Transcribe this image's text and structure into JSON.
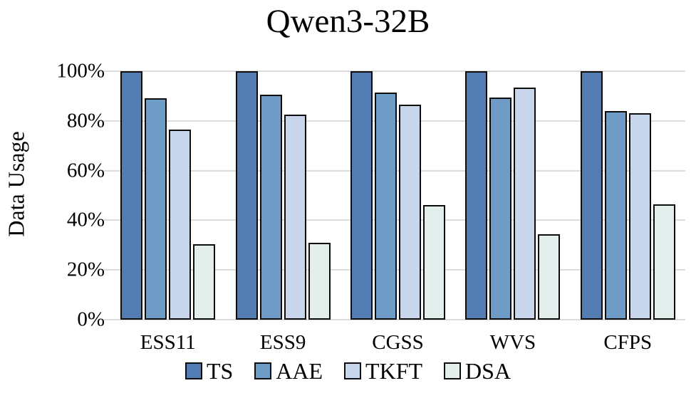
{
  "chart": {
    "title": "Qwen3-32B",
    "y_axis_title": "Data Usage"
  },
  "chart_data": {
    "type": "bar",
    "title": "Qwen3-32B",
    "xlabel": "",
    "ylabel": "Data Usage",
    "categories": [
      "ESS11",
      "ESS9",
      "CGSS",
      "WVS",
      "CFPS"
    ],
    "series": [
      {
        "name": "TS",
        "color": "#527cb2",
        "values": [
          100,
          100,
          100,
          100,
          100
        ]
      },
      {
        "name": "AAE",
        "color": "#6f9cc7",
        "values": [
          89,
          90.5,
          91.5,
          89.5,
          84
        ]
      },
      {
        "name": "TKFT",
        "color": "#c7d6eb",
        "values": [
          76.5,
          82.5,
          86.5,
          93.5,
          83
        ]
      },
      {
        "name": "DSA",
        "color": "#e2efec",
        "values": [
          30.5,
          31,
          46,
          34.5,
          46.5
        ]
      }
    ],
    "y_ticks": [
      "0%",
      "20%",
      "40%",
      "60%",
      "80%",
      "100%"
    ],
    "ylim": [
      0,
      100
    ],
    "grid": true,
    "gridline_color": "#dcdcdc",
    "bar_border_color": "#0d0d0d",
    "legend_position": "bottom"
  }
}
